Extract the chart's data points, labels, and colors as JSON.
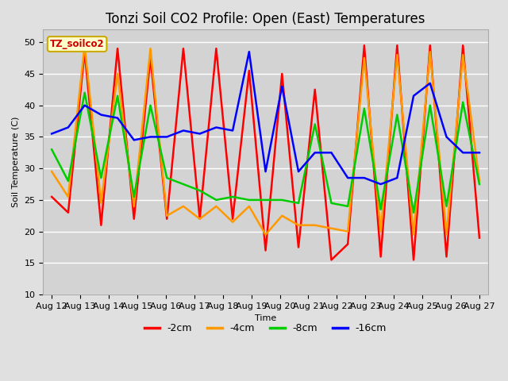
{
  "title": "Tonzi Soil CO2 Profile: Open (East) Temperatures",
  "xlabel": "Time",
  "ylabel": "Soil Temperature (C)",
  "ylim": [
    10,
    52
  ],
  "yticks": [
    10,
    15,
    20,
    25,
    30,
    35,
    40,
    45,
    50
  ],
  "x_labels": [
    "Aug 12",
    "Aug 13",
    "Aug 14",
    "Aug 15",
    "Aug 16",
    "Aug 17",
    "Aug 18",
    "Aug 19",
    "Aug 20",
    "Aug 21",
    "Aug 22",
    "Aug 23",
    "Aug 24",
    "Aug 25",
    "Aug 26",
    "Aug 27"
  ],
  "legend_label": "TZ_soilco2",
  "series": {
    "-2cm": {
      "color": "#ff0000",
      "values": [
        25.5,
        23.0,
        48.5,
        21.0,
        49.0,
        22.0,
        47.5,
        22.0,
        49.0,
        22.0,
        49.0,
        22.0,
        45.5,
        17.0,
        45.0,
        17.5,
        42.5,
        15.5,
        18.0,
        49.5,
        16.0,
        49.5,
        15.5,
        49.5,
        16.0,
        49.5,
        19.0
      ]
    },
    "-4cm": {
      "color": "#ff9900",
      "values": [
        29.5,
        25.5,
        49.5,
        24.5,
        45.0,
        24.0,
        49.0,
        22.5,
        24.0,
        22.0,
        24.0,
        21.5,
        24.0,
        19.5,
        22.5,
        21.0,
        21.0,
        20.5,
        20.0,
        47.5,
        20.0,
        48.0,
        19.5,
        48.5,
        19.5,
        48.0,
        28.0
      ]
    },
    "-8cm": {
      "color": "#00cc00",
      "values": [
        33.0,
        28.0,
        42.0,
        28.5,
        41.5,
        25.5,
        40.0,
        28.5,
        27.5,
        26.5,
        25.0,
        25.5,
        25.0,
        25.0,
        25.0,
        24.5,
        37.0,
        24.5,
        24.0,
        39.5,
        23.5,
        38.5,
        23.0,
        40.0,
        24.0,
        40.5,
        27.5
      ]
    },
    "-16cm": {
      "color": "#0000ff",
      "values": [
        35.5,
        36.5,
        40.0,
        38.5,
        38.0,
        34.5,
        35.0,
        35.0,
        36.0,
        35.5,
        36.5,
        36.0,
        48.5,
        29.5,
        43.0,
        29.5,
        32.5,
        32.5,
        28.5,
        28.5,
        27.5,
        28.5,
        41.5,
        43.5,
        35.0,
        32.5,
        32.5
      ]
    }
  },
  "bg_color": "#e0e0e0",
  "plot_bg_color": "#d3d3d3",
  "grid_color": "#ffffff",
  "title_fontsize": 12,
  "axis_fontsize": 8,
  "tick_fontsize": 8,
  "legend_box_facecolor": "#ffffcc",
  "legend_box_edgecolor": "#ccaa00",
  "legend_label_color": "#cc0000",
  "linewidth": 1.8
}
